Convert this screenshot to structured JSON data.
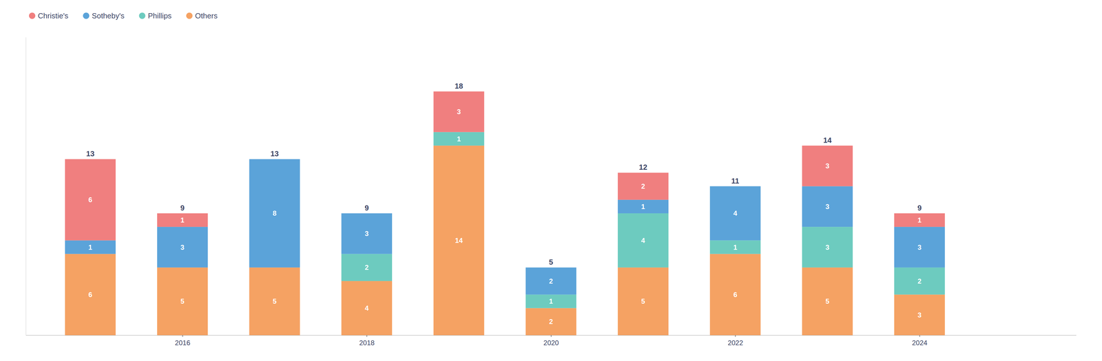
{
  "chart_data": {
    "type": "bar",
    "stacked": true,
    "x": [
      2015,
      2016,
      2017,
      2018,
      2019,
      2020,
      2021,
      2022,
      2023,
      2024
    ],
    "series": [
      {
        "name": "Others",
        "color": "#F5A263",
        "values": [
          6,
          5,
          5,
          4,
          14,
          2,
          5,
          6,
          5,
          3
        ]
      },
      {
        "name": "Phillips",
        "color": "#6DCBBF",
        "values": [
          0,
          0,
          0,
          2,
          1,
          1,
          4,
          1,
          3,
          2
        ]
      },
      {
        "name": "Sotheby's",
        "color": "#5BA3D9",
        "values": [
          1,
          3,
          8,
          3,
          0,
          2,
          1,
          4,
          3,
          3
        ]
      },
      {
        "name": "Christie's",
        "color": "#F07F7F",
        "values": [
          6,
          1,
          0,
          0,
          3,
          0,
          2,
          0,
          3,
          1
        ]
      }
    ],
    "totals": [
      13,
      9,
      13,
      9,
      18,
      5,
      12,
      11,
      14,
      9
    ],
    "xlim": [
      2014.3,
      2025.7
    ],
    "xticks": [
      2016,
      2018,
      2020,
      2022,
      2024
    ],
    "ylim": [
      0,
      22
    ],
    "tick_labels": "x",
    "grid": false,
    "legend": "upper left",
    "data_labels": true
  }
}
